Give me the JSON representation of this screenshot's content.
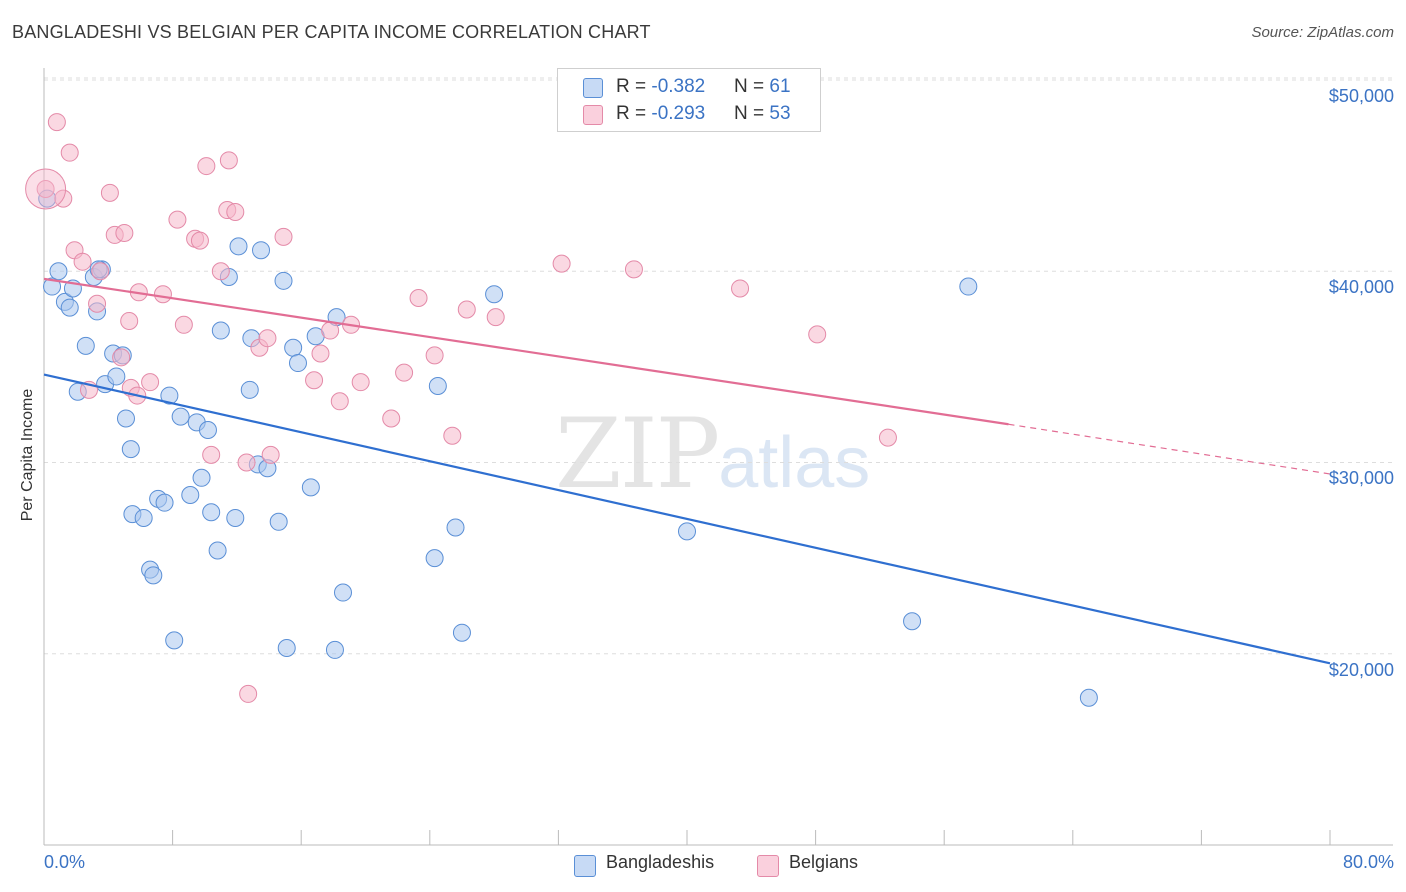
{
  "title": "BANGLADESHI VS BELGIAN PER CAPITA INCOME CORRELATION CHART",
  "source": "Source: ZipAtlas.com",
  "watermark": {
    "zip": "ZIP",
    "atlas": "atlas"
  },
  "legend_top": {
    "rows": [
      {
        "r_label": "R = ",
        "r_value": "-0.382",
        "n_label": "N = ",
        "n_value": "61",
        "color": "#a9c6ee"
      },
      {
        "r_label": "R = ",
        "r_value": "-0.293",
        "n_label": "N = ",
        "n_value": "53",
        "color": "#f6b8cb"
      }
    ]
  },
  "legend_bottom": [
    {
      "label": "Bangladeshis",
      "color": "#a9c6ee"
    },
    {
      "label": "Belgians",
      "color": "#f6b8cb"
    }
  ],
  "colors": {
    "blue_fill": "#a9c6ee",
    "blue_stroke": "#5a8fd6",
    "blue_line": "#2f6fd0",
    "pink_fill": "#f6b8cb",
    "pink_stroke": "#e48aa8",
    "pink_line": "#e26d94",
    "tick_text": "#3b73c4",
    "grid": "#dddddd"
  },
  "chart_data": {
    "type": "scatter",
    "title": "BANGLADESHI VS BELGIAN PER CAPITA INCOME CORRELATION CHART",
    "xlabel": "",
    "ylabel": "Per Capita Income",
    "xlim": [
      0,
      80
    ],
    "ylim": [
      10000,
      51000
    ],
    "x_tick_labels": [
      "0.0%",
      "80.0%"
    ],
    "y_ticks": [
      20000,
      30000,
      40000,
      50000
    ],
    "y_tick_labels": [
      "$20,000",
      "$30,000",
      "$40,000",
      "$50,000"
    ],
    "grid": true,
    "legend_position": "bottom-center",
    "series": [
      {
        "name": "Bangladeshis",
        "r": -0.382,
        "n": 61,
        "trend": {
          "x": [
            0,
            80
          ],
          "y": [
            34600,
            19500
          ]
        },
        "points": [
          [
            0.2,
            43800
          ],
          [
            0.5,
            39200
          ],
          [
            0.9,
            40000
          ],
          [
            1.3,
            38400
          ],
          [
            1.6,
            38100
          ],
          [
            1.8,
            39100
          ],
          [
            2.1,
            33700
          ],
          [
            2.6,
            36100
          ],
          [
            3.1,
            39700
          ],
          [
            3.3,
            37900
          ],
          [
            3.6,
            40100
          ],
          [
            3.8,
            34100
          ],
          [
            4.3,
            35700
          ],
          [
            4.5,
            34500
          ],
          [
            4.9,
            35600
          ],
          [
            5.1,
            32300
          ],
          [
            5.4,
            30700
          ],
          [
            5.5,
            27300
          ],
          [
            6.2,
            27100
          ],
          [
            6.6,
            24400
          ],
          [
            6.8,
            24100
          ],
          [
            7.1,
            28100
          ],
          [
            7.5,
            27900
          ],
          [
            7.8,
            33500
          ],
          [
            8.1,
            20700
          ],
          [
            8.5,
            32400
          ],
          [
            9.1,
            28300
          ],
          [
            9.5,
            32100
          ],
          [
            9.8,
            29200
          ],
          [
            10.2,
            31700
          ],
          [
            10.4,
            27400
          ],
          [
            10.8,
            25400
          ],
          [
            11.0,
            36900
          ],
          [
            11.5,
            39700
          ],
          [
            11.9,
            27100
          ],
          [
            12.1,
            41300
          ],
          [
            12.8,
            33800
          ],
          [
            12.9,
            36500
          ],
          [
            13.3,
            29900
          ],
          [
            13.5,
            41100
          ],
          [
            13.9,
            29700
          ],
          [
            14.6,
            26900
          ],
          [
            14.9,
            39500
          ],
          [
            15.1,
            20300
          ],
          [
            15.5,
            36000
          ],
          [
            15.8,
            35200
          ],
          [
            16.6,
            28700
          ],
          [
            16.9,
            36600
          ],
          [
            18.1,
            20200
          ],
          [
            18.2,
            37600
          ],
          [
            18.6,
            23200
          ],
          [
            24.5,
            34000
          ],
          [
            25.6,
            26600
          ],
          [
            24.3,
            25000
          ],
          [
            26.0,
            21100
          ],
          [
            28.0,
            38800
          ],
          [
            40.0,
            26400
          ],
          [
            54.0,
            21700
          ],
          [
            57.5,
            39200
          ],
          [
            65.0,
            17700
          ],
          [
            3.4,
            40100
          ]
        ]
      },
      {
        "name": "Belgians",
        "r": -0.293,
        "n": 53,
        "trend": {
          "x": [
            0,
            60
          ],
          "y": [
            39600,
            32000
          ]
        },
        "trend_dashed": {
          "x": [
            60,
            80
          ],
          "y": [
            32000,
            29400
          ]
        },
        "points": [
          [
            0.1,
            44300
          ],
          [
            0.8,
            47800
          ],
          [
            1.2,
            43800
          ],
          [
            1.6,
            46200
          ],
          [
            1.9,
            41100
          ],
          [
            2.4,
            40500
          ],
          [
            2.8,
            33800
          ],
          [
            3.3,
            38300
          ],
          [
            3.5,
            40000
          ],
          [
            4.1,
            44100
          ],
          [
            4.4,
            41900
          ],
          [
            4.8,
            35500
          ],
          [
            5.0,
            42000
          ],
          [
            5.3,
            37400
          ],
          [
            5.4,
            33900
          ],
          [
            5.8,
            33500
          ],
          [
            5.9,
            38900
          ],
          [
            6.6,
            34200
          ],
          [
            7.4,
            38800
          ],
          [
            8.3,
            42700
          ],
          [
            8.7,
            37200
          ],
          [
            9.4,
            41700
          ],
          [
            9.7,
            41600
          ],
          [
            10.1,
            45500
          ],
          [
            10.4,
            30400
          ],
          [
            11.0,
            40000
          ],
          [
            11.4,
            43200
          ],
          [
            11.5,
            45800
          ],
          [
            11.9,
            43100
          ],
          [
            12.6,
            30000
          ],
          [
            13.4,
            36000
          ],
          [
            13.9,
            36500
          ],
          [
            14.1,
            30400
          ],
          [
            14.9,
            41800
          ],
          [
            16.8,
            34300
          ],
          [
            17.2,
            35700
          ],
          [
            17.8,
            36900
          ],
          [
            18.4,
            33200
          ],
          [
            19.1,
            37200
          ],
          [
            19.7,
            34200
          ],
          [
            21.6,
            32300
          ],
          [
            22.4,
            34700
          ],
          [
            23.3,
            38600
          ],
          [
            24.3,
            35600
          ],
          [
            25.4,
            31400
          ],
          [
            26.3,
            38000
          ],
          [
            28.1,
            37600
          ],
          [
            32.2,
            40400
          ],
          [
            36.7,
            40100
          ],
          [
            43.3,
            39100
          ],
          [
            48.1,
            36700
          ],
          [
            52.5,
            31300
          ],
          [
            12.7,
            17900
          ]
        ]
      }
    ]
  }
}
